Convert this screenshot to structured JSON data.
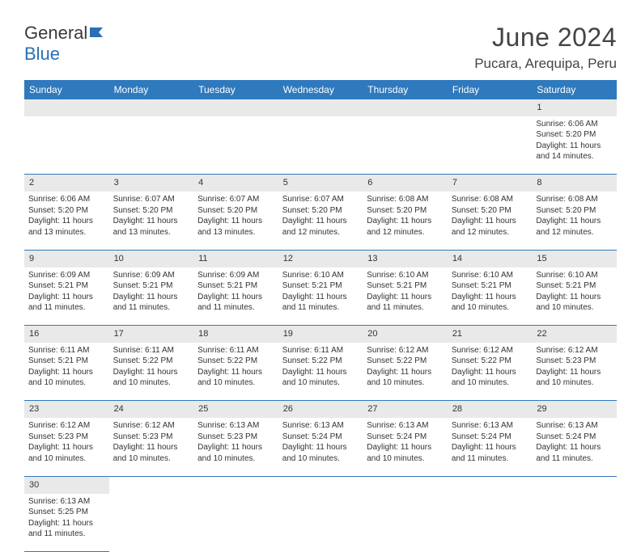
{
  "logo": {
    "text1": "General",
    "text2": "Blue",
    "icon_color": "#2a6fb5"
  },
  "header": {
    "title": "June 2024",
    "location": "Pucara, Arequipa, Peru"
  },
  "colors": {
    "header_bg": "#2f79bd",
    "header_fg": "#ffffff",
    "daynum_bg": "#e9e9e9",
    "border": "#2f79bd",
    "text": "#333333",
    "background": "#ffffff"
  },
  "day_headers": [
    "Sunday",
    "Monday",
    "Tuesday",
    "Wednesday",
    "Thursday",
    "Friday",
    "Saturday"
  ],
  "weeks": [
    [
      null,
      null,
      null,
      null,
      null,
      null,
      {
        "n": "1",
        "sr": "Sunrise: 6:06 AM",
        "ss": "Sunset: 5:20 PM",
        "d1": "Daylight: 11 hours",
        "d2": "and 14 minutes."
      }
    ],
    [
      {
        "n": "2",
        "sr": "Sunrise: 6:06 AM",
        "ss": "Sunset: 5:20 PM",
        "d1": "Daylight: 11 hours",
        "d2": "and 13 minutes."
      },
      {
        "n": "3",
        "sr": "Sunrise: 6:07 AM",
        "ss": "Sunset: 5:20 PM",
        "d1": "Daylight: 11 hours",
        "d2": "and 13 minutes."
      },
      {
        "n": "4",
        "sr": "Sunrise: 6:07 AM",
        "ss": "Sunset: 5:20 PM",
        "d1": "Daylight: 11 hours",
        "d2": "and 13 minutes."
      },
      {
        "n": "5",
        "sr": "Sunrise: 6:07 AM",
        "ss": "Sunset: 5:20 PM",
        "d1": "Daylight: 11 hours",
        "d2": "and 12 minutes."
      },
      {
        "n": "6",
        "sr": "Sunrise: 6:08 AM",
        "ss": "Sunset: 5:20 PM",
        "d1": "Daylight: 11 hours",
        "d2": "and 12 minutes."
      },
      {
        "n": "7",
        "sr": "Sunrise: 6:08 AM",
        "ss": "Sunset: 5:20 PM",
        "d1": "Daylight: 11 hours",
        "d2": "and 12 minutes."
      },
      {
        "n": "8",
        "sr": "Sunrise: 6:08 AM",
        "ss": "Sunset: 5:20 PM",
        "d1": "Daylight: 11 hours",
        "d2": "and 12 minutes."
      }
    ],
    [
      {
        "n": "9",
        "sr": "Sunrise: 6:09 AM",
        "ss": "Sunset: 5:21 PM",
        "d1": "Daylight: 11 hours",
        "d2": "and 11 minutes."
      },
      {
        "n": "10",
        "sr": "Sunrise: 6:09 AM",
        "ss": "Sunset: 5:21 PM",
        "d1": "Daylight: 11 hours",
        "d2": "and 11 minutes."
      },
      {
        "n": "11",
        "sr": "Sunrise: 6:09 AM",
        "ss": "Sunset: 5:21 PM",
        "d1": "Daylight: 11 hours",
        "d2": "and 11 minutes."
      },
      {
        "n": "12",
        "sr": "Sunrise: 6:10 AM",
        "ss": "Sunset: 5:21 PM",
        "d1": "Daylight: 11 hours",
        "d2": "and 11 minutes."
      },
      {
        "n": "13",
        "sr": "Sunrise: 6:10 AM",
        "ss": "Sunset: 5:21 PM",
        "d1": "Daylight: 11 hours",
        "d2": "and 11 minutes."
      },
      {
        "n": "14",
        "sr": "Sunrise: 6:10 AM",
        "ss": "Sunset: 5:21 PM",
        "d1": "Daylight: 11 hours",
        "d2": "and 10 minutes."
      },
      {
        "n": "15",
        "sr": "Sunrise: 6:10 AM",
        "ss": "Sunset: 5:21 PM",
        "d1": "Daylight: 11 hours",
        "d2": "and 10 minutes."
      }
    ],
    [
      {
        "n": "16",
        "sr": "Sunrise: 6:11 AM",
        "ss": "Sunset: 5:21 PM",
        "d1": "Daylight: 11 hours",
        "d2": "and 10 minutes."
      },
      {
        "n": "17",
        "sr": "Sunrise: 6:11 AM",
        "ss": "Sunset: 5:22 PM",
        "d1": "Daylight: 11 hours",
        "d2": "and 10 minutes."
      },
      {
        "n": "18",
        "sr": "Sunrise: 6:11 AM",
        "ss": "Sunset: 5:22 PM",
        "d1": "Daylight: 11 hours",
        "d2": "and 10 minutes."
      },
      {
        "n": "19",
        "sr": "Sunrise: 6:11 AM",
        "ss": "Sunset: 5:22 PM",
        "d1": "Daylight: 11 hours",
        "d2": "and 10 minutes."
      },
      {
        "n": "20",
        "sr": "Sunrise: 6:12 AM",
        "ss": "Sunset: 5:22 PM",
        "d1": "Daylight: 11 hours",
        "d2": "and 10 minutes."
      },
      {
        "n": "21",
        "sr": "Sunrise: 6:12 AM",
        "ss": "Sunset: 5:22 PM",
        "d1": "Daylight: 11 hours",
        "d2": "and 10 minutes."
      },
      {
        "n": "22",
        "sr": "Sunrise: 6:12 AM",
        "ss": "Sunset: 5:23 PM",
        "d1": "Daylight: 11 hours",
        "d2": "and 10 minutes."
      }
    ],
    [
      {
        "n": "23",
        "sr": "Sunrise: 6:12 AM",
        "ss": "Sunset: 5:23 PM",
        "d1": "Daylight: 11 hours",
        "d2": "and 10 minutes."
      },
      {
        "n": "24",
        "sr": "Sunrise: 6:12 AM",
        "ss": "Sunset: 5:23 PM",
        "d1": "Daylight: 11 hours",
        "d2": "and 10 minutes."
      },
      {
        "n": "25",
        "sr": "Sunrise: 6:13 AM",
        "ss": "Sunset: 5:23 PM",
        "d1": "Daylight: 11 hours",
        "d2": "and 10 minutes."
      },
      {
        "n": "26",
        "sr": "Sunrise: 6:13 AM",
        "ss": "Sunset: 5:24 PM",
        "d1": "Daylight: 11 hours",
        "d2": "and 10 minutes."
      },
      {
        "n": "27",
        "sr": "Sunrise: 6:13 AM",
        "ss": "Sunset: 5:24 PM",
        "d1": "Daylight: 11 hours",
        "d2": "and 10 minutes."
      },
      {
        "n": "28",
        "sr": "Sunrise: 6:13 AM",
        "ss": "Sunset: 5:24 PM",
        "d1": "Daylight: 11 hours",
        "d2": "and 11 minutes."
      },
      {
        "n": "29",
        "sr": "Sunrise: 6:13 AM",
        "ss": "Sunset: 5:24 PM",
        "d1": "Daylight: 11 hours",
        "d2": "and 11 minutes."
      }
    ],
    [
      {
        "n": "30",
        "sr": "Sunrise: 6:13 AM",
        "ss": "Sunset: 5:25 PM",
        "d1": "Daylight: 11 hours",
        "d2": "and 11 minutes."
      },
      null,
      null,
      null,
      null,
      null,
      null
    ]
  ]
}
